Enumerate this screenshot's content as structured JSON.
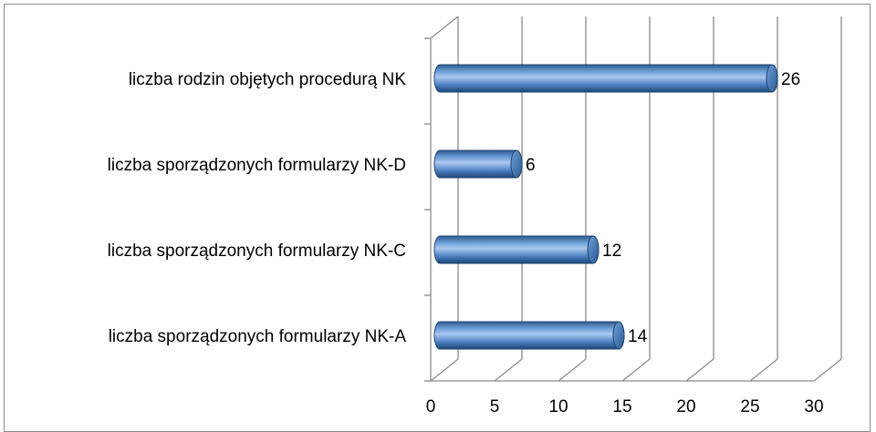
{
  "chart_data": {
    "type": "bar",
    "orientation": "horizontal",
    "style": "3d-cylinder",
    "categories": [
      "liczba rodzin objętych procedurą NK",
      "liczba sporządzonych formularzy NK-D",
      "liczba sporządzonych formularzy NK-C",
      "liczba sporządzonych formularzy NK-A"
    ],
    "values": [
      26,
      6,
      12,
      14
    ],
    "data_labels": [
      "26",
      "6",
      "12",
      "14"
    ],
    "title": "",
    "xlabel": "",
    "ylabel": "",
    "xlim": [
      0,
      30
    ],
    "x_ticks": [
      "0",
      "5",
      "10",
      "15",
      "20",
      "25",
      "30"
    ],
    "grid": "vertical",
    "legend": "none",
    "bar_color": "#4f81bd"
  }
}
